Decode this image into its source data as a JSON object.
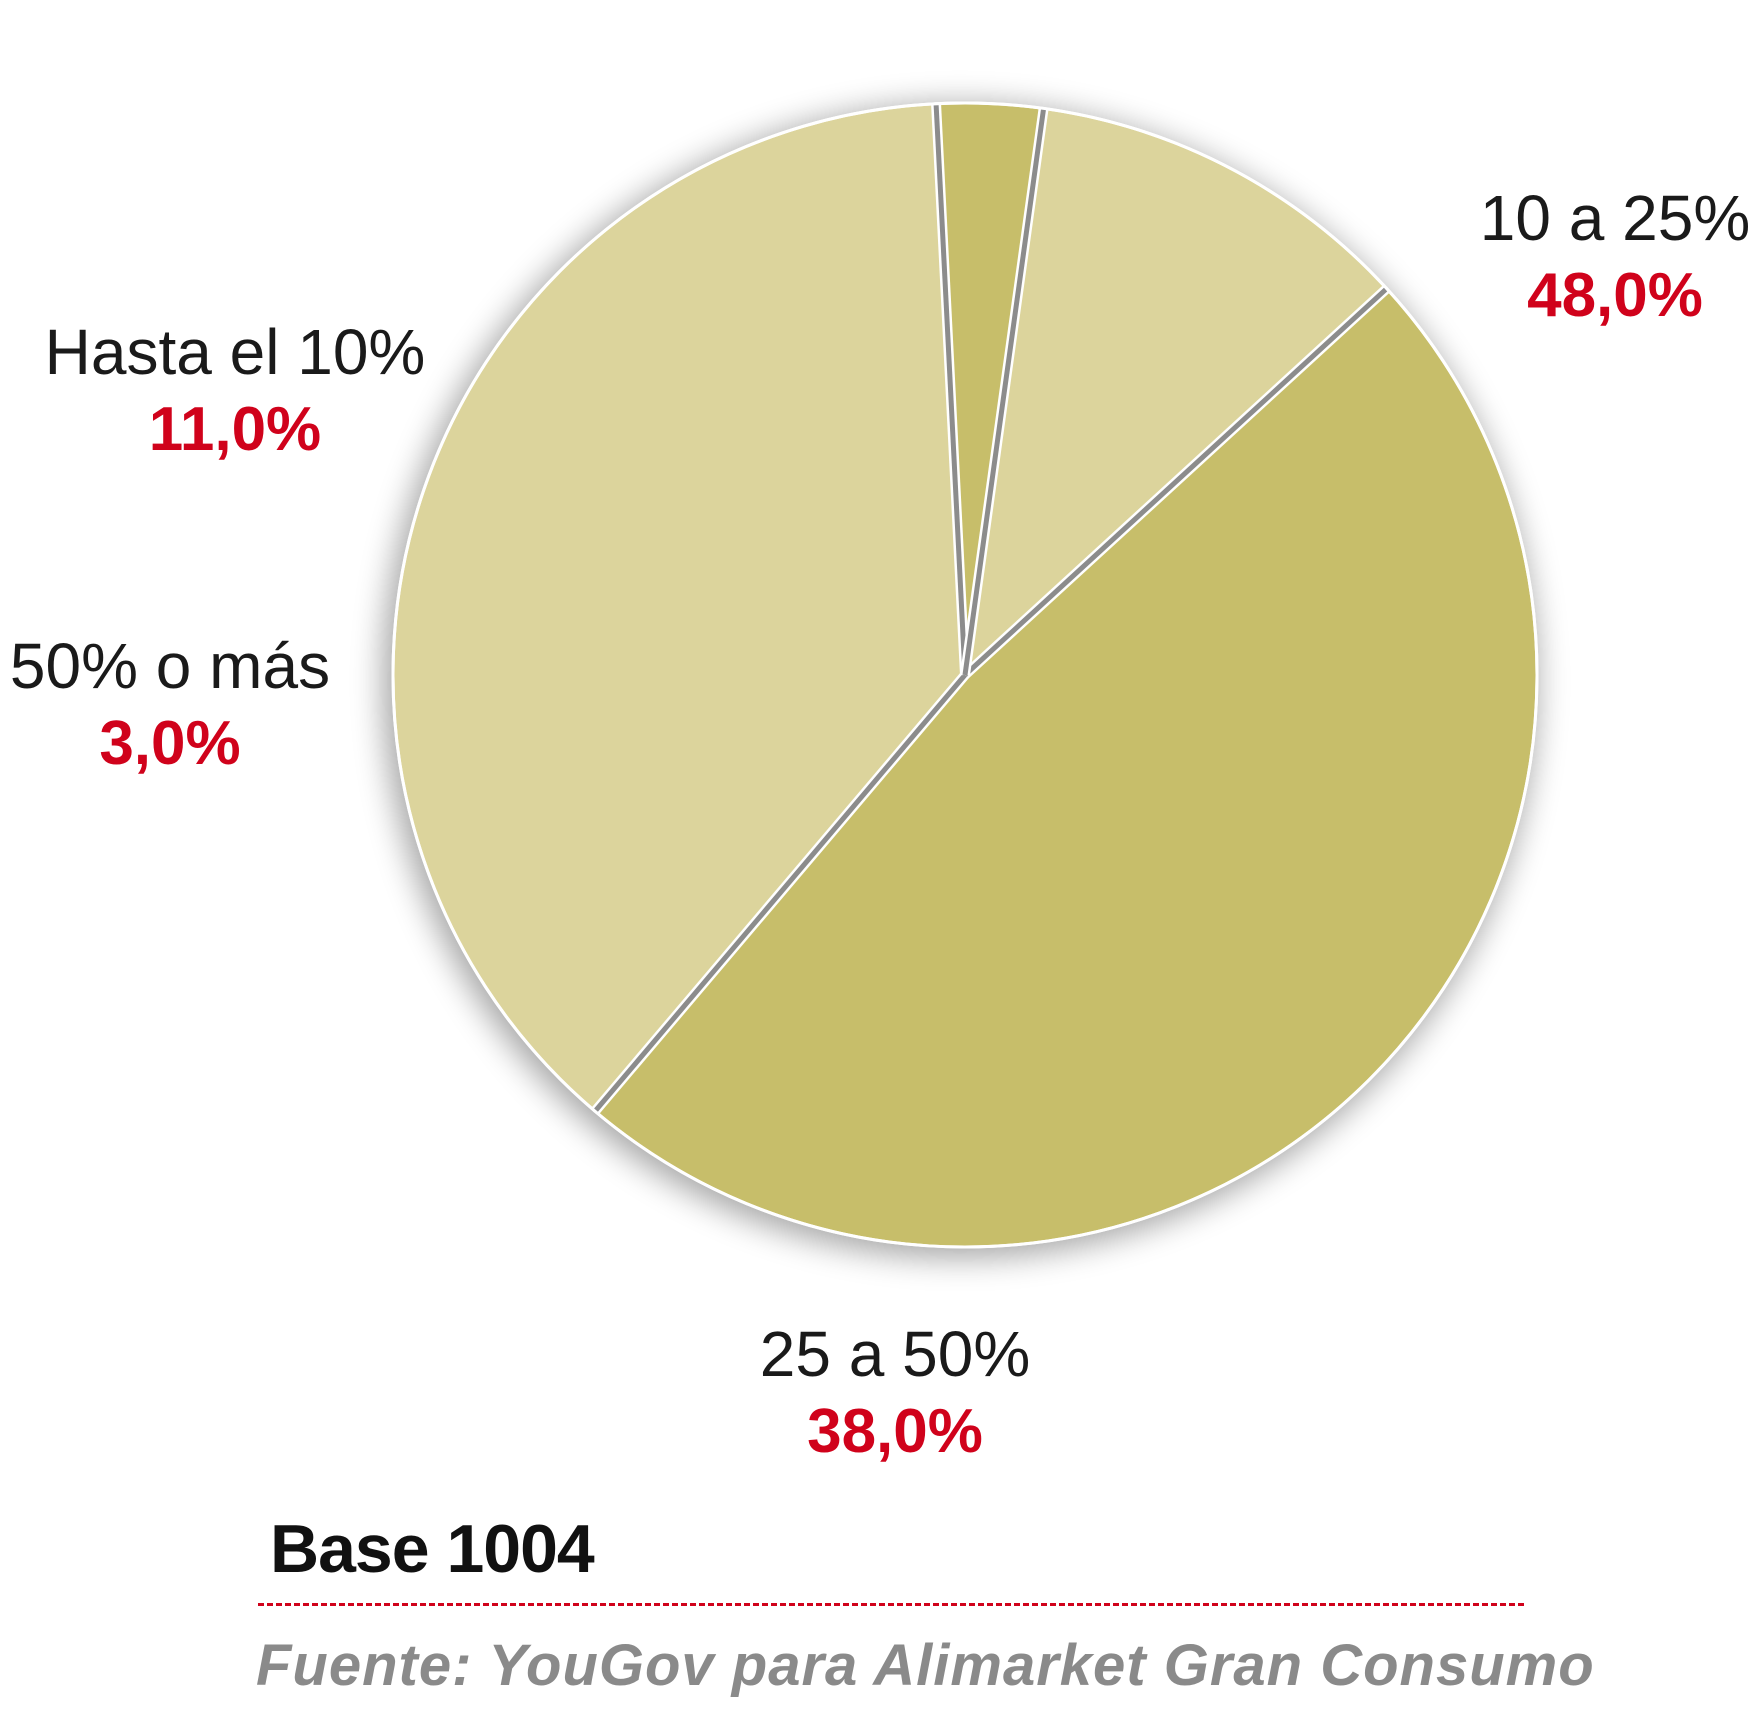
{
  "chart_data": {
    "type": "pie",
    "slices": [
      {
        "label": "10 a 25%",
        "value": 48.0,
        "value_label": "48,0%",
        "color": "#c7be6a"
      },
      {
        "label": "25 a 50%",
        "value": 38.0,
        "value_label": "38,0%",
        "color": "#dcd49c"
      },
      {
        "label": "50% o más",
        "value": 3.0,
        "value_label": "3,0%",
        "color": "#c7be6a"
      },
      {
        "label": "Hasta el 10%",
        "value": 11.0,
        "value_label": "11,0%",
        "color": "#dcd49c"
      }
    ],
    "value_color": "#d0021b",
    "separator_color": "#8c8c8c"
  },
  "footer": {
    "base": "Base 1004",
    "source": "Fuente: YouGov para Alimarket Gran Consumo"
  }
}
